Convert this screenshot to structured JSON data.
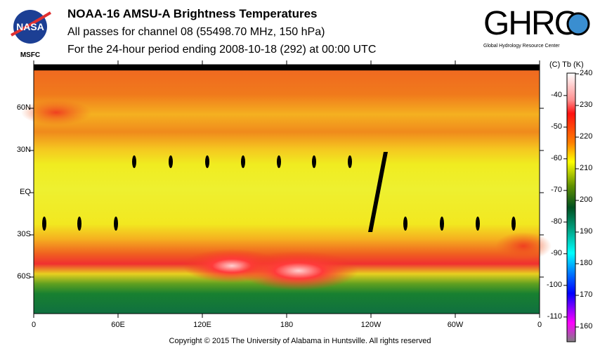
{
  "header": {
    "title": "NOAA-16 AMSU-A Brightness Temperatures",
    "subtitle": "All passes for channel 08 (55498.70 MHz, 150 hPa)",
    "period": "For the 24-hour period ending 2008-10-18 (292) at 00:00 UTC",
    "left_logo_text": "NASA",
    "left_logo_caption": "MSFC",
    "right_logo_text": "GHRC",
    "right_logo_caption": "Global Hydrology Resource Center"
  },
  "chart_data": {
    "type": "heatmap",
    "title": "NOAA-16 AMSU-A Brightness Temperatures",
    "x_ticks": [
      "0",
      "60E",
      "120E",
      "180",
      "120W",
      "60W",
      "0"
    ],
    "y_ticks": [
      "60N",
      "30N",
      "EQ",
      "30S",
      "60S"
    ],
    "xlim": [
      0,
      360
    ],
    "ylim": [
      -90,
      90
    ],
    "colorbar": {
      "header": "(C)  Tb  (K)",
      "kelvin_ticks": [
        "240",
        "230",
        "220",
        "210",
        "200",
        "190",
        "180",
        "170",
        "160"
      ],
      "celsius_ticks": [
        "-40",
        "-50",
        "-60",
        "-70",
        "-80",
        "-90",
        "-100",
        "-110"
      ],
      "range_k": [
        156,
        240
      ]
    },
    "zonal_tb_k": [
      {
        "lat": 75,
        "tb": 224
      },
      {
        "lat": 60,
        "tb": 222
      },
      {
        "lat": 45,
        "tb": 220
      },
      {
        "lat": 30,
        "tb": 216
      },
      {
        "lat": 0,
        "tb": 214
      },
      {
        "lat": -30,
        "tb": 216
      },
      {
        "lat": -45,
        "tb": 226
      },
      {
        "lat": -55,
        "tb": 230
      },
      {
        "lat": -62,
        "tb": 210
      },
      {
        "lat": -75,
        "tb": 202
      }
    ]
  },
  "footer": {
    "copyright": "Copyright © 2015 The University of Alabama in Huntsville.  All rights reserved"
  }
}
